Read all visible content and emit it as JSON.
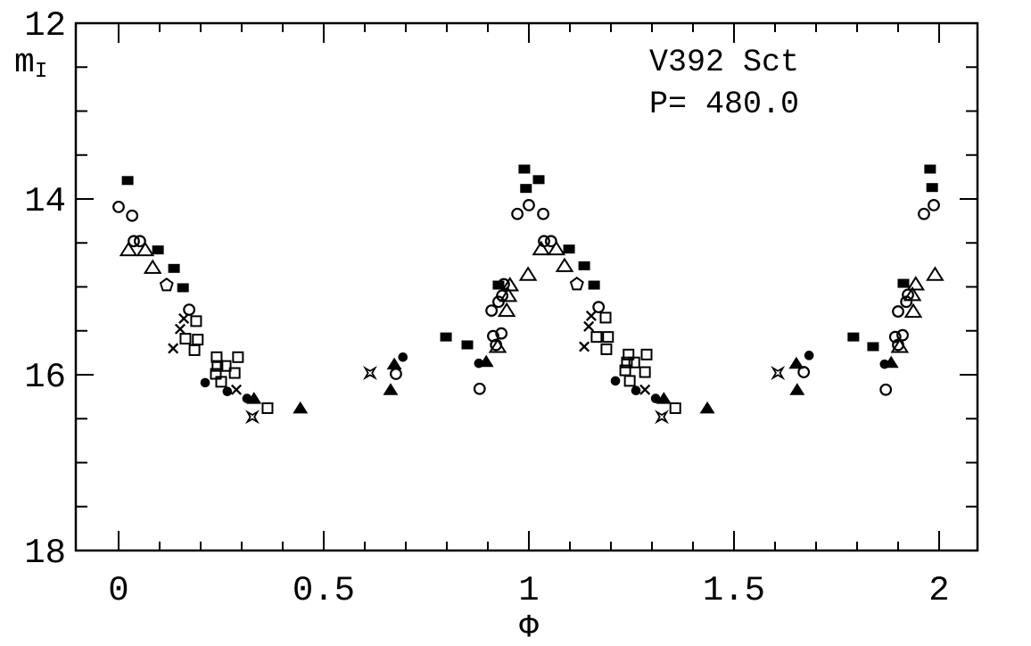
{
  "figure": {
    "background": "#ffffff",
    "ink": "#000000"
  },
  "chart_data": {
    "type": "scatter",
    "title": "V392 Sct",
    "subtitle": "P= 480.0",
    "xlabel": "Φ",
    "ylabel": "m_I",
    "ylabel_main": "m",
    "ylabel_sub": "I",
    "x_axis": {
      "min": -0.1043,
      "max": 2.0935,
      "ticks_major": [
        0,
        0.5,
        1,
        1.5,
        2
      ],
      "tick_labels": [
        "0",
        "0.5",
        "1",
        "1.5",
        "2"
      ],
      "minor_step": 0.1
    },
    "y_axis": {
      "min": 12,
      "max": 18,
      "inverted": true,
      "ticks_major": [
        12,
        14,
        16,
        18
      ],
      "tick_labels": [
        "12",
        "14",
        "16",
        "18"
      ],
      "minor_step": 0.5
    },
    "grid": false,
    "legend": "none",
    "series": [
      {
        "name": "filled squares",
        "symbol": "filled-square",
        "points": [
          [
            0.022,
            13.79
          ],
          [
            0.096,
            14.58
          ],
          [
            0.135,
            14.79
          ],
          [
            0.157,
            15.01
          ],
          [
            0.798,
            15.57
          ],
          [
            0.85,
            15.66
          ],
          [
            0.926,
            14.98
          ],
          [
            0.989,
            13.66
          ],
          [
            1.024,
            13.78
          ],
          [
            0.993,
            13.88
          ],
          [
            1.098,
            14.57
          ],
          [
            1.135,
            14.76
          ],
          [
            1.159,
            14.98
          ],
          [
            1.791,
            15.57
          ],
          [
            1.839,
            15.68
          ],
          [
            1.913,
            14.96
          ],
          [
            1.978,
            13.66
          ],
          [
            1.983,
            13.87
          ]
        ]
      },
      {
        "name": "open circles",
        "symbol": "open-circle",
        "points": [
          [
            0.0,
            14.09
          ],
          [
            0.033,
            14.19
          ],
          [
            0.037,
            14.48
          ],
          [
            0.052,
            14.48
          ],
          [
            0.172,
            15.26
          ],
          [
            0.676,
            15.99
          ],
          [
            0.88,
            16.16
          ],
          [
            0.913,
            15.56
          ],
          [
            0.933,
            15.53
          ],
          [
            0.92,
            15.66
          ],
          [
            0.939,
            14.97
          ],
          [
            0.935,
            15.1
          ],
          [
            0.926,
            15.17
          ],
          [
            0.909,
            15.27
          ],
          [
            1.0,
            14.07
          ],
          [
            0.972,
            14.17
          ],
          [
            1.035,
            14.17
          ],
          [
            1.037,
            14.48
          ],
          [
            1.054,
            14.48
          ],
          [
            1.17,
            15.23
          ],
          [
            1.67,
            15.97
          ],
          [
            1.87,
            16.17
          ],
          [
            1.893,
            15.57
          ],
          [
            1.911,
            15.55
          ],
          [
            1.9,
            15.66
          ],
          [
            1.924,
            15.09
          ],
          [
            1.92,
            15.17
          ],
          [
            1.9,
            15.28
          ],
          [
            1.987,
            14.07
          ],
          [
            1.963,
            14.17
          ]
        ]
      },
      {
        "name": "open triangles",
        "symbol": "open-triangle",
        "points": [
          [
            0.024,
            14.58
          ],
          [
            0.065,
            14.58
          ],
          [
            0.083,
            14.78
          ],
          [
            0.954,
            14.98
          ],
          [
            0.95,
            15.1
          ],
          [
            0.946,
            15.27
          ],
          [
            0.924,
            15.68
          ],
          [
            0.998,
            14.86
          ],
          [
            1.03,
            14.57
          ],
          [
            1.067,
            14.57
          ],
          [
            1.087,
            14.76
          ],
          [
            1.943,
            14.97
          ],
          [
            1.935,
            15.09
          ],
          [
            1.937,
            15.28
          ],
          [
            1.904,
            15.68
          ],
          [
            1.99,
            14.86
          ]
        ]
      },
      {
        "name": "filled triangles",
        "symbol": "filled-triangle",
        "points": [
          [
            0.33,
            16.27
          ],
          [
            0.443,
            16.38
          ],
          [
            0.672,
            15.88
          ],
          [
            0.663,
            16.17
          ],
          [
            0.896,
            15.85
          ],
          [
            1.329,
            16.27
          ],
          [
            1.435,
            16.38
          ],
          [
            1.652,
            15.87
          ],
          [
            1.654,
            16.17
          ],
          [
            1.883,
            15.86
          ]
        ]
      },
      {
        "name": "open squares",
        "symbol": "open-square",
        "points": [
          [
            0.189,
            15.39
          ],
          [
            0.163,
            15.59
          ],
          [
            0.193,
            15.6
          ],
          [
            0.185,
            15.72
          ],
          [
            0.239,
            15.8
          ],
          [
            0.291,
            15.8
          ],
          [
            0.241,
            15.9
          ],
          [
            0.261,
            15.9
          ],
          [
            0.237,
            15.99
          ],
          [
            0.283,
            15.98
          ],
          [
            0.25,
            16.08
          ],
          [
            0.363,
            16.38
          ],
          [
            1.187,
            15.35
          ],
          [
            1.165,
            15.57
          ],
          [
            1.193,
            15.57
          ],
          [
            1.189,
            15.71
          ],
          [
            1.243,
            15.77
          ],
          [
            1.287,
            15.77
          ],
          [
            1.239,
            15.86
          ],
          [
            1.257,
            15.86
          ],
          [
            1.235,
            15.95
          ],
          [
            1.283,
            15.97
          ],
          [
            1.246,
            16.07
          ],
          [
            1.357,
            16.38
          ]
        ]
      },
      {
        "name": "filled circles",
        "symbol": "filled-circle",
        "points": [
          [
            0.211,
            16.09
          ],
          [
            0.265,
            16.19
          ],
          [
            0.313,
            16.27
          ],
          [
            0.693,
            15.8
          ],
          [
            0.878,
            15.87
          ],
          [
            1.211,
            16.07
          ],
          [
            1.261,
            16.18
          ],
          [
            1.309,
            16.27
          ],
          [
            1.683,
            15.78
          ],
          [
            1.867,
            15.88
          ]
        ]
      },
      {
        "name": "crosses",
        "symbol": "cross",
        "points": [
          [
            0.159,
            15.36
          ],
          [
            0.15,
            15.48
          ],
          [
            0.133,
            15.7
          ],
          [
            0.287,
            16.17
          ],
          [
            1.152,
            15.33
          ],
          [
            1.146,
            15.45
          ],
          [
            1.135,
            15.68
          ],
          [
            1.283,
            16.17
          ]
        ]
      },
      {
        "name": "open pentagons",
        "symbol": "open-pentagon",
        "points": [
          [
            0.117,
            14.98
          ],
          [
            1.117,
            14.97
          ]
        ]
      },
      {
        "name": "four-point stars",
        "symbol": "four-point-star",
        "points": [
          [
            0.326,
            16.48
          ],
          [
            0.613,
            15.98
          ],
          [
            1.324,
            16.48
          ],
          [
            1.607,
            15.98
          ]
        ]
      }
    ]
  }
}
